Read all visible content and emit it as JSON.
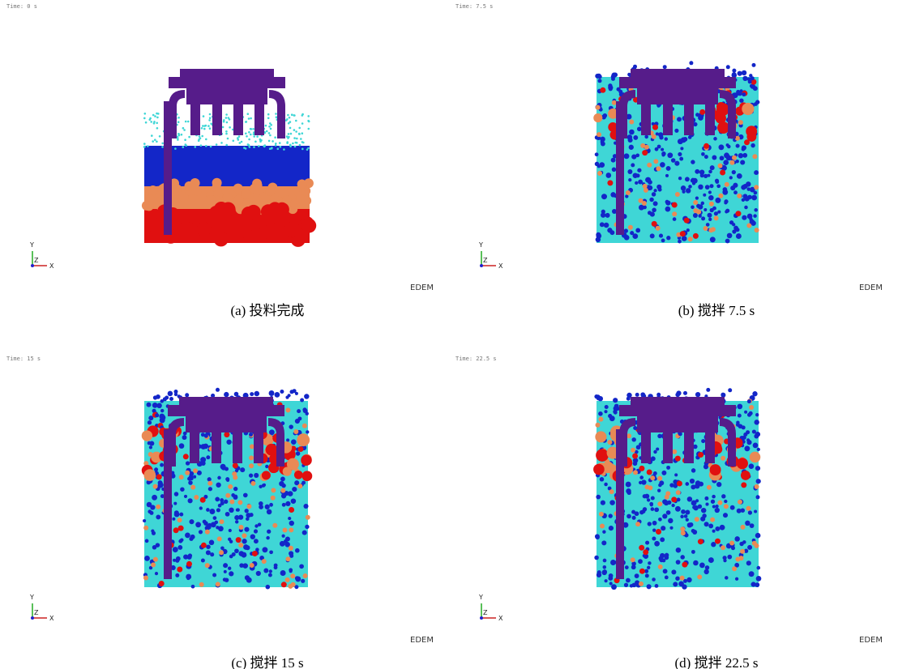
{
  "panels": [
    {
      "time": "Time: 0 s",
      "axis_x": "X",
      "axis_y": "Y",
      "axis_z": "Z",
      "logo": "EDEM",
      "caption": "(a)  投料完成"
    },
    {
      "time": "Time: 7.5 s",
      "axis_x": "X",
      "axis_y": "Y",
      "axis_z": "Z",
      "logo": "EDEM",
      "caption": "(b)  搅拌 7.5 s"
    },
    {
      "time": "Time: 15 s",
      "axis_x": "X",
      "axis_y": "Y",
      "axis_z": "Z",
      "logo": "EDEM",
      "caption": "(c)  搅拌 15 s"
    },
    {
      "time": "Time: 22.5 s",
      "axis_x": "X",
      "axis_y": "Y",
      "axis_z": "Z",
      "logo": "EDEM",
      "caption": "(d)  搅拌 22.5 s"
    }
  ]
}
